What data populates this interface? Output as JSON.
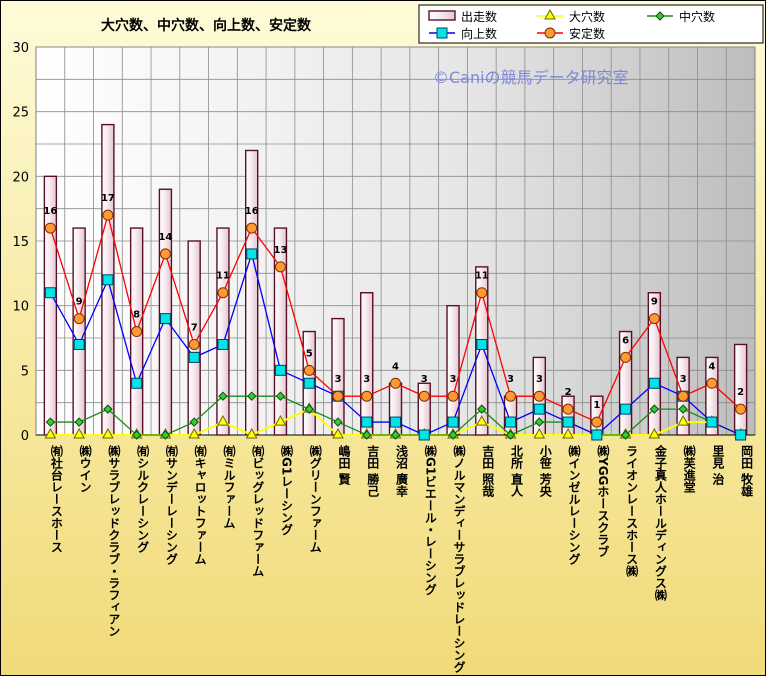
{
  "chart_data": {
    "type": "bar",
    "title": "大穴数、中穴数、向上数、安定数",
    "watermark": "©Caniの競馬データ研究室",
    "ylim": [
      0,
      30
    ],
    "yticks": [
      0,
      5,
      10,
      15,
      20,
      25,
      30
    ],
    "grid": true,
    "legend_position": "top-right",
    "categories": [
      "㈲社台レースホース",
      "㈱ウイン",
      "㈱サラブレッドクラブ・ラフィアン",
      "㈲シルクレーシング",
      "㈲サンデーレーシング",
      "㈲キャロットファーム",
      "㈲ミルファーム",
      "㈲ビッグレッドファーム",
      "㈱G1レーシング",
      "㈱グリーンファーム",
      "嶋田 賢",
      "吉田 勝己",
      "浅沼 廣幸",
      "㈱G1ビエール・レーシング",
      "㈱ノルマンディーサラブレッドレーシング",
      "吉田 照哉",
      "北所 直人",
      "小笹 芳央",
      "㈱インゼルレーシング",
      "㈱YGGホースクラブ",
      "ライオンレースホース㈱",
      "金子真人ホールディングス㈱",
      "㈱芙進堂",
      "里見 治",
      "岡田 牧雄"
    ],
    "series": [
      {
        "name": "出走数",
        "kind": "bar",
        "color": "#f5e1e8",
        "values": [
          20,
          16,
          24,
          16,
          19,
          15,
          16,
          22,
          16,
          8,
          9,
          11,
          4,
          4,
          10,
          13,
          3,
          6,
          3,
          3,
          8,
          11,
          6,
          6,
          7
        ]
      },
      {
        "name": "大穴数",
        "kind": "line",
        "color": "#ffff00",
        "marker": "triangle",
        "values": [
          0,
          0,
          0,
          0,
          0,
          0,
          1,
          0,
          1,
          2,
          0,
          0,
          0,
          0,
          0,
          1,
          0,
          0,
          0,
          0,
          0,
          0,
          1,
          1,
          0
        ]
      },
      {
        "name": "中穴数",
        "kind": "line",
        "color": "#1a8a1a",
        "marker": "diamond",
        "values": [
          1,
          1,
          2,
          0,
          0,
          1,
          3,
          3,
          3,
          2,
          1,
          0,
          0,
          0,
          0,
          2,
          0,
          1,
          1,
          0,
          0,
          2,
          2,
          1,
          0
        ]
      },
      {
        "name": "向上数",
        "kind": "line",
        "color": "#0000ff",
        "marker": "square",
        "values": [
          11,
          7,
          12,
          4,
          9,
          6,
          7,
          14,
          5,
          4,
          3,
          1,
          1,
          0,
          1,
          7,
          1,
          2,
          1,
          0,
          2,
          4,
          3,
          1,
          0
        ]
      },
      {
        "name": "安定数",
        "kind": "line",
        "color": "#ff0000",
        "marker": "circle",
        "values": [
          16,
          9,
          17,
          8,
          14,
          7,
          11,
          16,
          13,
          5,
          3,
          3,
          4,
          3,
          3,
          11,
          3,
          3,
          2,
          1,
          6,
          9,
          3,
          4,
          2
        ]
      }
    ]
  }
}
